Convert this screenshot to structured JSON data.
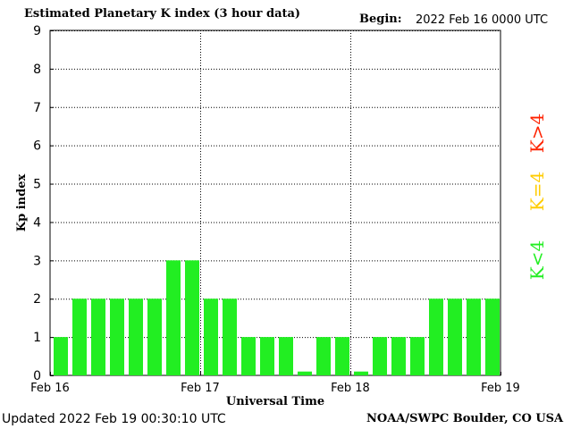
{
  "header": {
    "title": "Estimated Planetary K index (3 hour data)",
    "begin_label": "Begin:",
    "begin_value": "2022 Feb 16 0000 UTC"
  },
  "footer": {
    "updated": "Updated 2022 Feb 19 00:30:10 UTC",
    "credit": "NOAA/SWPC Boulder, CO USA"
  },
  "legend": {
    "low": "K<4",
    "mid": "K=4",
    "high": "K>4",
    "colors": {
      "low": "#22ee22",
      "mid": "#ffcc00",
      "high": "#ff2200"
    }
  },
  "chart_data": {
    "type": "bar",
    "title": "Estimated Planetary K index (3 hour data)",
    "xlabel": "Universal Time",
    "ylabel": "Kp index",
    "ylim": [
      0,
      9
    ],
    "yticks": [
      "0",
      "1",
      "2",
      "3",
      "4",
      "5",
      "6",
      "7",
      "8",
      "9"
    ],
    "x_tick_labels": [
      "Feb 16",
      "Feb 17",
      "Feb 18",
      "Feb 19"
    ],
    "grid": true,
    "values": [
      1,
      2,
      2,
      2,
      2,
      2,
      3,
      3,
      2,
      2,
      1,
      1,
      1,
      0.1,
      1,
      1,
      0.1,
      1,
      1,
      1,
      2,
      2,
      2,
      2
    ],
    "bar_color": "#22ee22"
  }
}
